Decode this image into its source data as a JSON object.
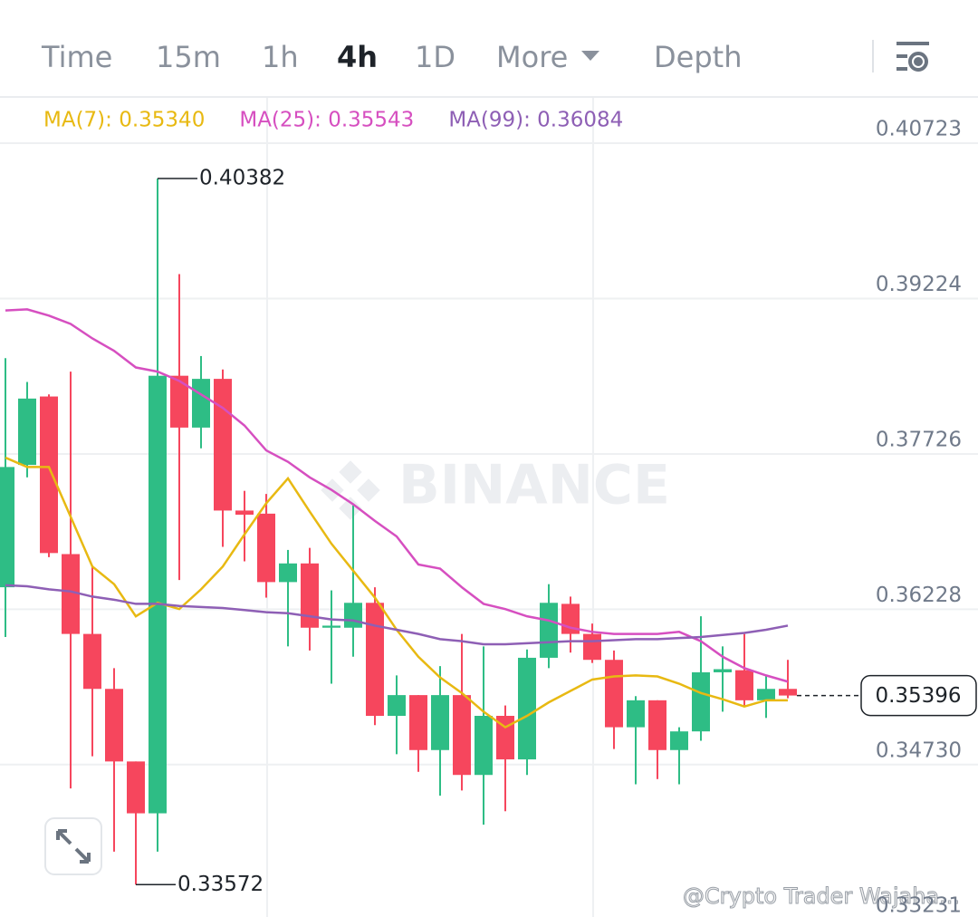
{
  "tabs": [
    "Time",
    "15m",
    "1h",
    "4h",
    "1D",
    "More",
    "Depth"
  ],
  "active_tab": "4h",
  "watermark": "BINANCE",
  "credit": "@Crypto Trader Wajaha...",
  "chart_data": {
    "type": "candlestick",
    "open": [
      0.3644,
      0.3762,
      0.3828,
      0.3676,
      0.3599,
      0.3546,
      0.3476,
      0.3426,
      0.3848,
      0.3798,
      0.3845,
      0.3718,
      0.3715,
      0.3649,
      0.3667,
      0.3605,
      0.3605,
      0.3629,
      0.352,
      0.354,
      0.3487,
      0.354,
      0.3463,
      0.352,
      0.3478,
      0.3576,
      0.3628,
      0.3599,
      0.3574,
      0.3509,
      0.3535,
      0.3487,
      0.3505,
      0.3562,
      0.3564,
      0.3535,
      0.3546
    ],
    "high": [
      0.3865,
      0.3842,
      0.383,
      0.3852,
      0.3664,
      0.3566,
      0.3476,
      0.40382,
      0.3946,
      0.3867,
      0.3854,
      0.3737,
      0.3734,
      0.368,
      0.3682,
      0.3641,
      0.3723,
      0.3644,
      0.3559,
      0.354,
      0.3568,
      0.3599,
      0.3587,
      0.353,
      0.3584,
      0.3647,
      0.3635,
      0.3609,
      0.3583,
      0.3539,
      0.3535,
      0.3509,
      0.3616,
      0.3587,
      0.3599,
      0.3559,
      0.3574
    ],
    "low": [
      0.3596,
      0.375,
      0.3673,
      0.345,
      0.3481,
      0.3389,
      0.33572,
      0.3389,
      0.3651,
      0.3778,
      0.3683,
      0.3669,
      0.3634,
      0.3587,
      0.3583,
      0.3551,
      0.3577,
      0.3511,
      0.3483,
      0.3466,
      0.3443,
      0.3448,
      0.3415,
      0.3428,
      0.3463,
      0.3566,
      0.3581,
      0.3571,
      0.3488,
      0.3454,
      0.3459,
      0.3454,
      0.3496,
      0.3524,
      0.353,
      0.3518,
      0.3537
    ],
    "close": [
      0.376,
      0.3826,
      0.3677,
      0.3599,
      0.3546,
      0.3476,
      0.3426,
      0.3848,
      0.3798,
      0.3845,
      0.3718,
      0.3714,
      0.3649,
      0.3667,
      0.3605,
      0.3607,
      0.3629,
      0.352,
      0.354,
      0.3487,
      0.354,
      0.3463,
      0.352,
      0.3478,
      0.3576,
      0.3629,
      0.3599,
      0.3574,
      0.3509,
      0.3535,
      0.3487,
      0.3505,
      0.3562,
      0.3565,
      0.3535,
      0.3546,
      0.35396
    ],
    "up_color": "#2ebd85",
    "down_color": "#f6465d",
    "series": [
      {
        "name": "MA(7): 0.35340",
        "color": "#e8b912",
        "values": [
          0.3769,
          0.376,
          0.376,
          0.3712,
          0.3664,
          0.3647,
          0.3616,
          0.3629,
          0.3623,
          0.3642,
          0.3664,
          0.3695,
          0.3725,
          0.3749,
          0.3717,
          0.3686,
          0.366,
          0.3634,
          0.3603,
          0.3577,
          0.3557,
          0.3542,
          0.3524,
          0.3509,
          0.352,
          0.3533,
          0.3544,
          0.3555,
          0.3558,
          0.3559,
          0.3558,
          0.3551,
          0.3542,
          0.3536,
          0.3529,
          0.3535,
          0.3535
        ]
      },
      {
        "name": "MA(25): 0.35543",
        "color": "#d64fc0",
        "values": [
          0.3911,
          0.3912,
          0.3906,
          0.3898,
          0.3884,
          0.3872,
          0.3856,
          0.3852,
          0.3843,
          0.383,
          0.3817,
          0.38,
          0.3776,
          0.3765,
          0.375,
          0.3738,
          0.3724,
          0.3708,
          0.3693,
          0.3666,
          0.3662,
          0.3644,
          0.3628,
          0.3623,
          0.3616,
          0.3612,
          0.3605,
          0.3601,
          0.3599,
          0.3599,
          0.3599,
          0.3601,
          0.3592,
          0.3577,
          0.3566,
          0.3559,
          0.3553
        ]
      },
      {
        "name": "MA(99): 0.36084",
        "color": "#8e5fb5",
        "values": [
          0.3646,
          0.3645,
          0.3642,
          0.364,
          0.3635,
          0.3632,
          0.3628,
          0.3628,
          0.3626,
          0.3625,
          0.3624,
          0.3622,
          0.362,
          0.3619,
          0.3616,
          0.3613,
          0.3612,
          0.3607,
          0.3603,
          0.3599,
          0.3594,
          0.3592,
          0.3589,
          0.3589,
          0.359,
          0.3591,
          0.3592,
          0.3592,
          0.3593,
          0.3594,
          0.3594,
          0.3595,
          0.3596,
          0.3598,
          0.36,
          0.3603,
          0.3607
        ]
      }
    ],
    "ylim": [
      0.3326,
      0.4116
    ],
    "yticks": [
      0.40723,
      0.39224,
      0.37726,
      0.36228,
      {
        "value": 0.3473,
        "label": "0.34730"
      },
      0.33231
    ],
    "grid": true
  }
}
